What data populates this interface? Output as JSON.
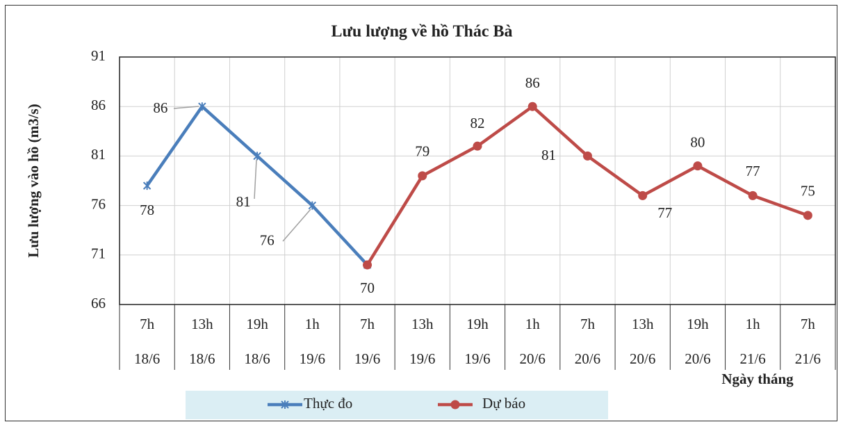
{
  "chart_data": {
    "type": "line",
    "title": "Lưu lượng về hồ Thác Bà",
    "y_label": "Lưu lượng vào hồ (m3/s)",
    "x_label": "Ngày tháng",
    "categories": [
      [
        "7h",
        "18/6"
      ],
      [
        "13h",
        "18/6"
      ],
      [
        "19h",
        "18/6"
      ],
      [
        "1h",
        "19/6"
      ],
      [
        "7h",
        "19/6"
      ],
      [
        "13h",
        "19/6"
      ],
      [
        "19h",
        "19/6"
      ],
      [
        "1h",
        "20/6"
      ],
      [
        "7h",
        "20/6"
      ],
      [
        "13h",
        "20/6"
      ],
      [
        "19h",
        "20/6"
      ],
      [
        "1h",
        "21/6"
      ],
      [
        "7h",
        "21/6"
      ]
    ],
    "series": [
      {
        "name": "Thực đo",
        "color": "#4a7ebb",
        "marker": "star",
        "values": [
          78,
          86,
          81,
          76,
          70,
          null,
          null,
          null,
          null,
          null,
          null,
          null,
          null
        ]
      },
      {
        "name": "Dự báo",
        "color": "#be4b48",
        "marker": "circle",
        "values": [
          null,
          null,
          null,
          null,
          70,
          79,
          82,
          86,
          81,
          77,
          80,
          77,
          75
        ]
      }
    ],
    "ylim": [
      66,
      91
    ],
    "yticks": [
      66,
      71,
      76,
      81,
      86,
      91
    ],
    "grid": true,
    "legend": "bottom"
  }
}
